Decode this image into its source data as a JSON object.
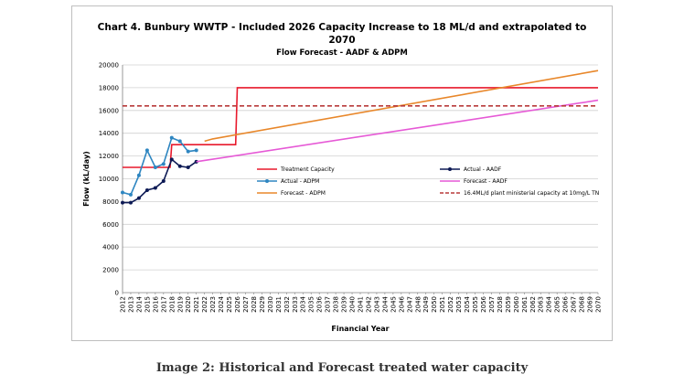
{
  "caption": "Image 2: Historical and Forecast treated water capacity",
  "chart_data": {
    "type": "line",
    "title_line1": "Chart 4. Bunbury WWTP - Included 2026 Capacity Increase to 18 ML/d and extrapolated to",
    "title_line2": "2070",
    "subtitle": "Flow Forecast - AADF & ADPM",
    "xlabel": "Financial Year",
    "ylabel": "Flow (kL/day)",
    "xlim": [
      2012,
      2070
    ],
    "ylim": [
      0,
      20000
    ],
    "yticks": [
      0,
      2000,
      4000,
      6000,
      8000,
      10000,
      12000,
      14000,
      16000,
      18000,
      20000
    ],
    "grid": true,
    "legend_position": "bottom-inside",
    "series": [
      {
        "name": "Treatment Capacity",
        "color": "#e8192c",
        "dash": false,
        "marker": false,
        "x": [
          2012,
          2017.8,
          2018,
          2025.8,
          2026,
          2070
        ],
        "y": [
          11000,
          11000,
          13000,
          13000,
          18000,
          18000
        ]
      },
      {
        "name": "Actual - AADF",
        "color": "#0d1a55",
        "dash": false,
        "marker": true,
        "x": [
          2012,
          2013,
          2014,
          2015,
          2016,
          2017,
          2018,
          2019,
          2020,
          2021
        ],
        "y": [
          7900,
          7900,
          8300,
          9000,
          9200,
          9800,
          11700,
          11100,
          11000,
          11500
        ]
      },
      {
        "name": "Actual - ADPM",
        "color": "#2e86c1",
        "dash": false,
        "marker": true,
        "x": [
          2012,
          2013,
          2014,
          2015,
          2016,
          2017,
          2018,
          2019,
          2020,
          2021
        ],
        "y": [
          8800,
          8600,
          10300,
          12500,
          11000,
          11300,
          13600,
          13300,
          12400,
          12500
        ]
      },
      {
        "name": "Forecast - AADF",
        "color": "#e659d6",
        "dash": false,
        "marker": false,
        "x": [
          2021,
          2070
        ],
        "y": [
          11500,
          16900
        ]
      },
      {
        "name": "Forecast - ADPM",
        "color": "#e8872a",
        "dash": false,
        "marker": false,
        "x": [
          2022,
          2023,
          2070
        ],
        "y": [
          13300,
          13500,
          19500
        ]
      },
      {
        "name": "16.4ML/d plant ministerial capacity at 10mg/L TN",
        "color": "#b83a3a",
        "dash": true,
        "marker": false,
        "x": [
          2012,
          2070
        ],
        "y": [
          16400,
          16400
        ]
      }
    ]
  }
}
